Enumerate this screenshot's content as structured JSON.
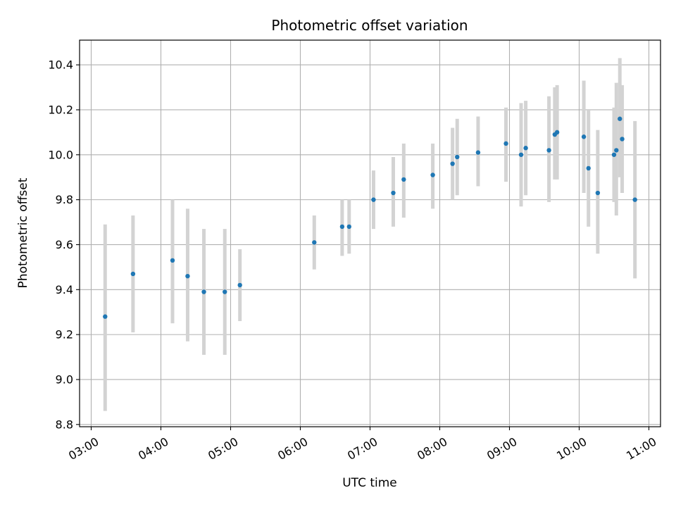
{
  "chart_data": {
    "type": "scatter",
    "title": "Photometric offset variation",
    "xlabel": "UTC time",
    "ylabel": "Photometric offset",
    "x_ticks": [
      "03:00",
      "04:00",
      "05:00",
      "06:00",
      "07:00",
      "08:00",
      "09:00",
      "10:00",
      "11:00"
    ],
    "xlim": [
      "02:50",
      "11:10"
    ],
    "y_ticks": [
      "8.8",
      "9.0",
      "9.2",
      "9.4",
      "9.6",
      "9.8",
      "10.0",
      "10.2",
      "10.4"
    ],
    "ylim": [
      8.79,
      10.51
    ],
    "grid": true,
    "colors": {
      "marker": "#1f77b4",
      "errorbar": "#d3d3d3",
      "grid": "#b0b0b0"
    },
    "series": [
      {
        "points": [
          {
            "x": "03:12",
            "y": 9.28,
            "yerr_low": 8.86,
            "yerr_high": 9.69
          },
          {
            "x": "03:36",
            "y": 9.47,
            "yerr_low": 9.21,
            "yerr_high": 9.73
          },
          {
            "x": "04:10",
            "y": 9.53,
            "yerr_low": 9.25,
            "yerr_high": 9.8
          },
          {
            "x": "04:23",
            "y": 9.46,
            "yerr_low": 9.17,
            "yerr_high": 9.76
          },
          {
            "x": "04:37",
            "y": 9.39,
            "yerr_low": 9.11,
            "yerr_high": 9.67
          },
          {
            "x": "04:55",
            "y": 9.39,
            "yerr_low": 9.11,
            "yerr_high": 9.67
          },
          {
            "x": "05:08",
            "y": 9.42,
            "yerr_low": 9.26,
            "yerr_high": 9.58
          },
          {
            "x": "06:12",
            "y": 9.61,
            "yerr_low": 9.49,
            "yerr_high": 9.73
          },
          {
            "x": "06:36",
            "y": 9.68,
            "yerr_low": 9.55,
            "yerr_high": 9.8
          },
          {
            "x": "06:42",
            "y": 9.68,
            "yerr_low": 9.56,
            "yerr_high": 9.8
          },
          {
            "x": "07:03",
            "y": 9.8,
            "yerr_low": 9.67,
            "yerr_high": 9.93
          },
          {
            "x": "07:20",
            "y": 9.83,
            "yerr_low": 9.68,
            "yerr_high": 9.99
          },
          {
            "x": "07:29",
            "y": 9.89,
            "yerr_low": 9.72,
            "yerr_high": 10.05
          },
          {
            "x": "07:54",
            "y": 9.91,
            "yerr_low": 9.76,
            "yerr_high": 10.05
          },
          {
            "x": "08:11",
            "y": 9.96,
            "yerr_low": 9.8,
            "yerr_high": 10.12
          },
          {
            "x": "08:15",
            "y": 9.99,
            "yerr_low": 9.82,
            "yerr_high": 10.16
          },
          {
            "x": "08:33",
            "y": 10.01,
            "yerr_low": 9.86,
            "yerr_high": 10.17
          },
          {
            "x": "08:57",
            "y": 10.05,
            "yerr_low": 9.88,
            "yerr_high": 10.21
          },
          {
            "x": "09:10",
            "y": 10.0,
            "yerr_low": 9.77,
            "yerr_high": 10.23
          },
          {
            "x": "09:14",
            "y": 10.03,
            "yerr_low": 9.82,
            "yerr_high": 10.24
          },
          {
            "x": "09:34",
            "y": 10.02,
            "yerr_low": 9.79,
            "yerr_high": 10.26
          },
          {
            "x": "09:39",
            "y": 10.09,
            "yerr_low": 9.89,
            "yerr_high": 10.3
          },
          {
            "x": "09:41",
            "y": 10.1,
            "yerr_low": 9.89,
            "yerr_high": 10.31
          },
          {
            "x": "10:04",
            "y": 10.08,
            "yerr_low": 9.83,
            "yerr_high": 10.33
          },
          {
            "x": "10:08",
            "y": 9.94,
            "yerr_low": 9.68,
            "yerr_high": 10.2
          },
          {
            "x": "10:16",
            "y": 9.83,
            "yerr_low": 9.56,
            "yerr_high": 10.11
          },
          {
            "x": "10:30",
            "y": 10.0,
            "yerr_low": 9.79,
            "yerr_high": 10.21
          },
          {
            "x": "10:32",
            "y": 10.02,
            "yerr_low": 9.73,
            "yerr_high": 10.32
          },
          {
            "x": "10:35",
            "y": 10.16,
            "yerr_low": 9.9,
            "yerr_high": 10.43
          },
          {
            "x": "10:37",
            "y": 10.07,
            "yerr_low": 9.83,
            "yerr_high": 10.31
          },
          {
            "x": "10:48",
            "y": 9.8,
            "yerr_low": 9.45,
            "yerr_high": 10.15
          }
        ]
      }
    ]
  }
}
